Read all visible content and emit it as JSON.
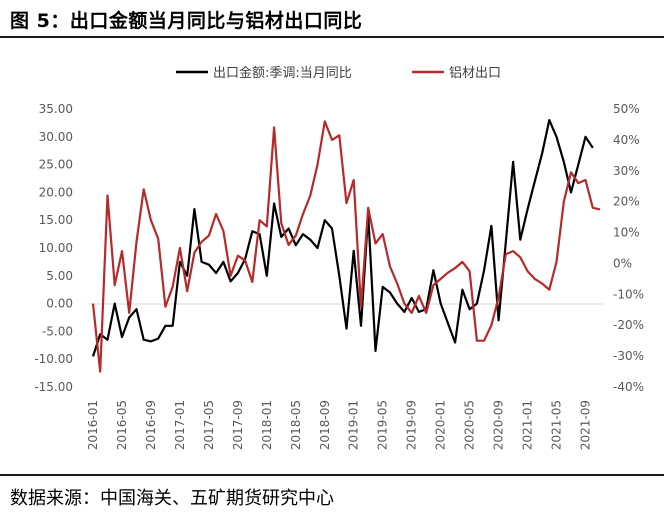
{
  "figure": {
    "title": "图 5：出口金额当月同比与铝材出口同比",
    "source": "数据来源：中国海关、五矿期货研究中心"
  },
  "chart_data": {
    "type": "line",
    "legend_position": "top",
    "grid": false,
    "x_tick_labels": [
      "2016-01",
      "2016-05",
      "2016-09",
      "2017-01",
      "2017-05",
      "2017-09",
      "2018-01",
      "2018-05",
      "2018-09",
      "2019-01",
      "2019-05",
      "2019-09",
      "2020-01",
      "2020-05",
      "2020-09",
      "2021-01",
      "2021-05",
      "2021-09"
    ],
    "left_axis": {
      "range": [
        -15,
        35
      ],
      "tick_labels": [
        "-15.00",
        "-10.00",
        "-5.00",
        "0.00",
        "5.00",
        "10.00",
        "15.00",
        "20.00",
        "25.00",
        "30.00",
        "35.00"
      ]
    },
    "right_axis": {
      "range": [
        -40,
        50
      ],
      "tick_labels": [
        "-40%",
        "-30%",
        "-20%",
        "-10%",
        "0%",
        "10%",
        "20%",
        "30%",
        "40%",
        "50%"
      ]
    },
    "series": [
      {
        "name": "出口金额:季调:当月同比",
        "axis": "left",
        "color": "#000000",
        "values": [
          -9.5,
          -5.5,
          -6.5,
          0.0,
          -6.0,
          -2.5,
          -1.0,
          -6.5,
          -6.8,
          -6.3,
          -4.0,
          -4.0,
          7.5,
          5.0,
          17.0,
          7.5,
          7.0,
          5.5,
          7.5,
          4.0,
          5.5,
          8.0,
          13.0,
          12.5,
          5.0,
          18.0,
          12.0,
          13.5,
          10.5,
          12.5,
          11.5,
          10.0,
          15.0,
          13.5,
          5.0,
          -4.5,
          9.5,
          -4.0,
          16.0,
          -8.5,
          3.0,
          2.0,
          0.0,
          -1.5,
          1.0,
          -1.5,
          -1.0,
          6.0,
          0.0,
          -3.5,
          -7.0,
          2.5,
          -1.0,
          0.0,
          6.0,
          14.0,
          -3.0,
          11.0,
          25.5,
          11.5,
          17.0,
          22.0,
          27.0,
          33.0,
          30.0,
          25.5,
          20.0,
          25.0,
          30.0,
          28.0
        ]
      },
      {
        "name": "铝材出口",
        "axis": "right",
        "color": "#b52a2a",
        "values": [
          -13.0,
          -35.0,
          22.0,
          -7.0,
          4.0,
          -16.0,
          7.0,
          24.0,
          14.0,
          8.0,
          -14.0,
          -7.5,
          5.0,
          -9.0,
          3.5,
          7.0,
          9.0,
          16.0,
          10.5,
          -4.0,
          2.5,
          1.0,
          -6.0,
          14.0,
          12.0,
          44.0,
          13.0,
          6.0,
          9.0,
          16.0,
          22.0,
          32.0,
          46.0,
          40.0,
          41.5,
          19.5,
          27.0,
          -14.0,
          18.0,
          6.5,
          9.5,
          -1.0,
          -6.5,
          -13.0,
          -16.0,
          -10.5,
          -16.0,
          -7.0,
          -5.0,
          -3.0,
          -1.5,
          0.5,
          -2.5,
          -25.0,
          -25.0,
          -20.0,
          -11.0,
          3.0,
          4.0,
          2.0,
          -2.5,
          -5.0,
          -6.5,
          -8.5,
          0.5,
          20.0,
          29.5,
          26.0,
          27.0,
          18.0,
          17.5
        ]
      }
    ]
  }
}
